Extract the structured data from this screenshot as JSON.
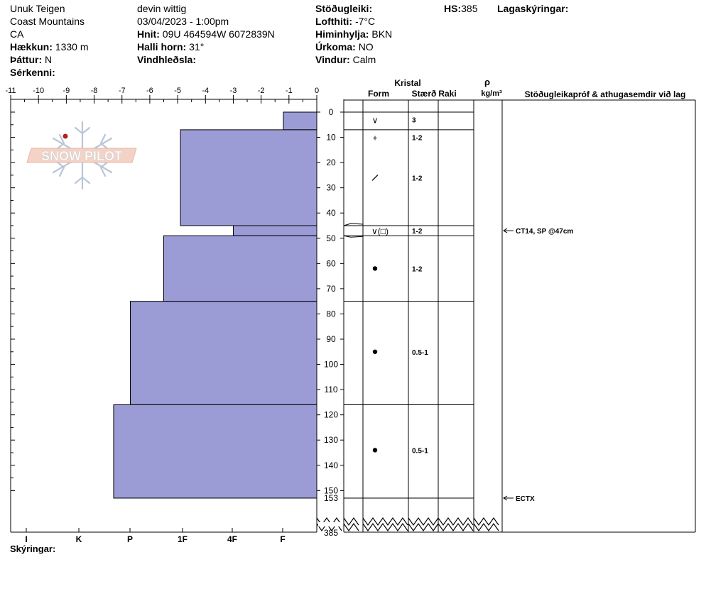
{
  "header": {
    "location": "Unuk Teigen",
    "range": "Coast Mountains",
    "country": "CA",
    "elevation_label": "Hækkun:",
    "elevation_value": "1330 m",
    "aspect_label": "Þáttur:",
    "aspect_value": "N",
    "features_label": "Sérkenni:",
    "observer": "devin wittig",
    "datetime": "03/04/2023 - 1:00pm",
    "coords_label": "Hnit:",
    "coords_value": "09U 464594W 6072839N",
    "slope_label": "Halli horn:",
    "slope_value": "31°",
    "wind_loading_label": "Vindhleðsla:",
    "stability_label": "Stöðugleiki:",
    "air_temp_label": "Lofthiti:",
    "air_temp_value": "-7°C",
    "sky_label": "Himinhylja:",
    "sky_value": "BKN",
    "precip_label": "Úrkoma:",
    "precip_value": "NO",
    "wind_label": "Vindur:",
    "wind_value": "Calm",
    "hs_label": "HS:",
    "hs_value": "385",
    "layer_notes_label": "Lagaskýringar:"
  },
  "logo": {
    "text": "SNOW PILOT"
  },
  "columns": {
    "crystal": "Kristal",
    "form": "Form",
    "size": "Stærð",
    "moisture": "Raki",
    "density_symbol": "ρ",
    "density_unit": "kg/m³",
    "tests": "Stöðugleikapróf & athugasemdir við lag"
  },
  "footer": {
    "notes_label": "Skýringar:"
  },
  "chart_data": {
    "type": "bar",
    "title": "",
    "temp_axis": {
      "ticks": [
        "-11",
        "-10",
        "-9",
        "-8",
        "-7",
        "-6",
        "-5",
        "-4",
        "-3",
        "-2",
        "-1",
        "0"
      ],
      "range": [
        -11,
        0
      ]
    },
    "hardness_axis": {
      "labels": [
        "I",
        "K",
        "P",
        "1F",
        "4F",
        "F"
      ]
    },
    "depth_axis": {
      "ticks": [
        "0",
        "10",
        "20",
        "30",
        "40",
        "50",
        "60",
        "70",
        "80",
        "90",
        "100",
        "110",
        "120",
        "130",
        "140",
        "150"
      ],
      "extra_labels": [
        "153",
        "385"
      ],
      "range": [
        0,
        153
      ]
    },
    "layers": [
      {
        "top": 0,
        "bottom": 7,
        "hardness_value": -1.2,
        "form": "∨",
        "size": "3"
      },
      {
        "top": 7,
        "bottom": 45,
        "hardness_value": -4.9,
        "form": "+",
        "size": "1-2"
      },
      {
        "top": 45,
        "bottom": 49,
        "hardness_value": -3.0,
        "form": "∨(□)",
        "size": "1-2"
      },
      {
        "top": 49,
        "bottom": 75,
        "hardness_value": -5.5,
        "form": "●",
        "size": "1-2"
      },
      {
        "top": 75,
        "bottom": 116,
        "hardness_value": -6.7,
        "form": "●",
        "size": "0.5-1"
      },
      {
        "top": 116,
        "bottom": 153,
        "hardness_value": -7.3,
        "form": "●",
        "size": "0.5-1"
      }
    ],
    "form_symbols": [
      {
        "depth": 3,
        "symbol": "∨"
      },
      {
        "depth": 10,
        "symbol": "+"
      },
      {
        "depth": 26,
        "symbol": "/"
      },
      {
        "depth": 47,
        "symbol": "∨(□)"
      },
      {
        "depth": 62,
        "symbol": "●"
      },
      {
        "depth": 95,
        "symbol": "●"
      },
      {
        "depth": 134,
        "symbol": "●"
      }
    ],
    "size_labels": [
      {
        "depth": 3,
        "text": "3"
      },
      {
        "depth": 10,
        "text": "1-2"
      },
      {
        "depth": 26,
        "text": "1-2"
      },
      {
        "depth": 47,
        "text": "1-2"
      },
      {
        "depth": 62,
        "text": "1-2"
      },
      {
        "depth": 95,
        "text": "0.5-1"
      },
      {
        "depth": 134,
        "text": "0.5-1"
      }
    ],
    "tests": [
      {
        "depth": 47,
        "text": "CT14, SP @47cm"
      },
      {
        "depth": 153,
        "text": "ECTX"
      }
    ]
  }
}
